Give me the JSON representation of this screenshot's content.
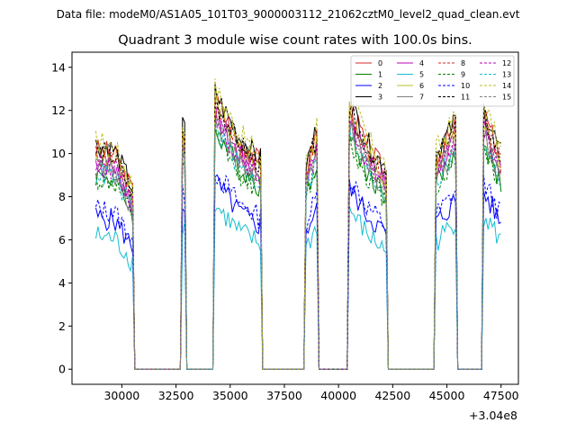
{
  "figure": {
    "suptitle": "Data file: modeM0/AS1A05_101T03_9000003112_21062cztM0_level2_quad_clean.evt",
    "offset_label": "+3.04e8"
  },
  "chart_data": {
    "type": "line",
    "title": "Quadrant 3 module wise count rates with 100.0s bins.",
    "xlabel": "",
    "ylabel": "",
    "x_offset": 304000000,
    "xlim": [
      27700,
      48300
    ],
    "ylim": [
      -0.7,
      14.7
    ],
    "xticks": [
      30000,
      32500,
      35000,
      37500,
      40000,
      42500,
      45000,
      47500
    ],
    "xtick_labels": [
      "30000",
      "32500",
      "35000",
      "37500",
      "40000",
      "42500",
      "45000",
      "47500"
    ],
    "yticks": [
      0,
      2,
      4,
      6,
      8,
      10,
      12,
      14
    ],
    "ytick_labels": [
      "0",
      "2",
      "4",
      "6",
      "8",
      "10",
      "12",
      "14"
    ],
    "grid": false,
    "legend_position": "top-right",
    "bin_seconds": 100,
    "active_intervals": [
      {
        "start": 28800,
        "end": 30500,
        "levels": [
          9.8,
          9.6,
          7.9
        ]
      },
      {
        "start": 32800,
        "end": 32900,
        "levels": [
          10.6,
          10.6,
          10.6
        ]
      },
      {
        "start": 34300,
        "end": 36400,
        "levels": [
          12.1,
          10.2,
          9.2
        ]
      },
      {
        "start": 38500,
        "end": 39000,
        "levels": [
          8.9,
          9.7,
          10.6
        ]
      },
      {
        "start": 40500,
        "end": 42200,
        "levels": [
          11.7,
          9.9,
          8.7
        ]
      },
      {
        "start": 44500,
        "end": 45400,
        "levels": [
          9.4,
          10.1,
          10.9
        ]
      },
      {
        "start": 46700,
        "end": 47500,
        "levels": [
          11.4,
          10.4,
          9.4
        ]
      }
    ],
    "series": [
      {
        "name": "0",
        "color": "#d62728",
        "dash": false,
        "scale": 1.04
      },
      {
        "name": "1",
        "color": "#008000",
        "dash": false,
        "scale": 0.92
      },
      {
        "name": "2",
        "color": "#0000ff",
        "dash": false,
        "scale": 0.72
      },
      {
        "name": "3",
        "color": "#000000",
        "dash": false,
        "scale": 1.06
      },
      {
        "name": "4",
        "color": "#bf00bf",
        "dash": false,
        "scale": 0.98
      },
      {
        "name": "5",
        "color": "#17becf",
        "dash": false,
        "scale": 0.63
      },
      {
        "name": "6",
        "color": "#bcbd22",
        "dash": false,
        "scale": 1.02
      },
      {
        "name": "7",
        "color": "#7f7f7f",
        "dash": false,
        "scale": 0.95
      },
      {
        "name": "8",
        "color": "#d62728",
        "dash": true,
        "scale": 1.01
      },
      {
        "name": "9",
        "color": "#008000",
        "dash": true,
        "scale": 0.9
      },
      {
        "name": "10",
        "color": "#0000ff",
        "dash": true,
        "scale": 0.76
      },
      {
        "name": "11",
        "color": "#000000",
        "dash": true,
        "scale": 1.03
      },
      {
        "name": "12",
        "color": "#bf00bf",
        "dash": true,
        "scale": 0.97
      },
      {
        "name": "13",
        "color": "#17becf",
        "dash": true,
        "scale": 0.93
      },
      {
        "name": "14",
        "color": "#bcbd22",
        "dash": true,
        "scale": 1.08
      },
      {
        "name": "15",
        "color": "#7f7f7f",
        "dash": true,
        "scale": 0.96
      }
    ]
  }
}
